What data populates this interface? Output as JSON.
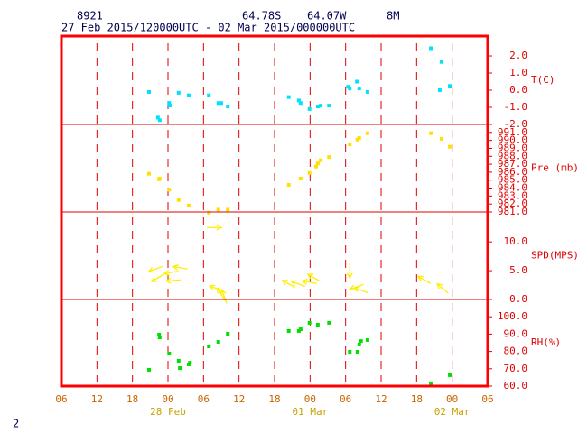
{
  "header": {
    "station": "8921",
    "lat": "64.78S",
    "lon": "64.07W",
    "height": "8M",
    "period": "27 Feb 2015/120000UTC - 02 Mar 2015/000000UTC",
    "page": "2"
  },
  "x_axis": {
    "xlim": [
      0,
      72
    ],
    "xticks": [
      {
        "value": 0,
        "label": "06"
      },
      {
        "value": 6,
        "label": "12"
      },
      {
        "value": 12,
        "label": "18"
      },
      {
        "value": 18,
        "label": "00"
      },
      {
        "value": 24,
        "label": "06"
      },
      {
        "value": 30,
        "label": "12"
      },
      {
        "value": 36,
        "label": "18"
      },
      {
        "value": 42,
        "label": "00"
      },
      {
        "value": 48,
        "label": "06"
      },
      {
        "value": 54,
        "label": "12"
      },
      {
        "value": 60,
        "label": "18"
      },
      {
        "value": 66,
        "label": "00"
      },
      {
        "value": 72,
        "label": "06"
      }
    ],
    "day_labels": [
      {
        "value": 18,
        "label": "28 Feb"
      },
      {
        "value": 42,
        "label": "01 Mar"
      },
      {
        "value": 66,
        "label": "02 Mar"
      }
    ]
  },
  "chart_data": [
    {
      "type": "scatter",
      "title": "T(C)",
      "color": "#00e0ff",
      "ylim": [
        -2,
        3.16
      ],
      "yticks": [
        {
          "value": -2,
          "label": "-2.0"
        },
        {
          "value": -1,
          "label": "-1.0"
        },
        {
          "value": 0,
          "label": "0.0"
        },
        {
          "value": 1,
          "label": "1.0"
        },
        {
          "value": 2,
          "label": "2.0"
        }
      ],
      "x": [
        14.8,
        16.3,
        16.6,
        18.2,
        18.3,
        19.8,
        21.5,
        24.9,
        26.5,
        27.0,
        28.1,
        38.4,
        40.1,
        40.4,
        41.9,
        43.3,
        43.8,
        45.2,
        48.4,
        48.7,
        49.9,
        50.3,
        51.7,
        62.4,
        64.2,
        63.9,
        65.6
      ],
      "values": [
        -0.1,
        -1.6,
        -1.75,
        -0.75,
        -0.9,
        -0.15,
        -0.3,
        -0.3,
        -0.75,
        -0.75,
        -0.95,
        -0.4,
        -0.6,
        -0.75,
        -1.1,
        -0.95,
        -0.9,
        -0.9,
        0.2,
        0.1,
        0.5,
        0.1,
        -0.1,
        2.45,
        1.65,
        0.0,
        0.25
      ]
    },
    {
      "type": "scatter",
      "title": "Pre (mb)",
      "color": "#ffe000",
      "ylim": [
        981,
        992
      ],
      "yticks": [
        {
          "value": 981,
          "label": "981.0"
        },
        {
          "value": 982,
          "label": "982.0"
        },
        {
          "value": 983,
          "label": "983.0"
        },
        {
          "value": 984,
          "label": "984.0"
        },
        {
          "value": 985,
          "label": "985.0"
        },
        {
          "value": 986,
          "label": "986.0"
        },
        {
          "value": 987,
          "label": "987.0"
        },
        {
          "value": 988,
          "label": "988.0"
        },
        {
          "value": 989,
          "label": "989.0"
        },
        {
          "value": 990,
          "label": "990.0"
        },
        {
          "value": 991,
          "label": "991.0"
        }
      ],
      "x": [
        14.8,
        16.5,
        16.6,
        18.2,
        19.8,
        21.5,
        24.9,
        26.5,
        28.1,
        38.4,
        40.4,
        41.9,
        43.0,
        43.3,
        43.8,
        45.2,
        48.7,
        50.0,
        50.3,
        51.7,
        62.4,
        64.2,
        65.6
      ],
      "values": [
        985.8,
        985.1,
        985.2,
        983.8,
        982.5,
        981.8,
        980.9,
        981.3,
        981.3,
        984.4,
        985.2,
        985.9,
        986.7,
        987.1,
        987.5,
        987.9,
        989.5,
        990.1,
        990.3,
        990.9,
        990.9,
        990.2,
        989.2
      ]
    },
    {
      "type": "quiver",
      "title": "SPD(MPS)",
      "color": "#ffee00",
      "ylim": [
        0,
        15.2
      ],
      "yticks": [
        {
          "value": 0,
          "label": "0.0"
        },
        {
          "value": 5,
          "label": "5.0"
        },
        {
          "value": 10,
          "label": "10.0"
        }
      ],
      "x": [
        15.9,
        16.3,
        18.6,
        20.1,
        18.9,
        25.8,
        26.2,
        27.0,
        27.5,
        38.4,
        40.0,
        41.9,
        42.7,
        48.7,
        49.9,
        50.6,
        61.3,
        64.4
      ],
      "values": [
        5.3,
        3.75,
        4.7,
        5.5,
        3.3,
        12.5,
        1.9,
        0.9,
        0.5,
        2.7,
        2.7,
        3.0,
        3.75,
        5.0,
        2.2,
        1.6,
        3.4,
        1.9
      ],
      "angles": [
        200,
        210,
        190,
        170,
        185,
        0,
        160,
        120,
        110,
        150,
        160,
        170,
        150,
        270,
        200,
        160,
        150,
        140
      ]
    },
    {
      "type": "scatter",
      "title": "RH(%)",
      "color": "#00e000",
      "ylim": [
        60,
        110
      ],
      "yticks": [
        {
          "value": 60,
          "label": "60.0"
        },
        {
          "value": 70,
          "label": "70.0"
        },
        {
          "value": 80,
          "label": "80.0"
        },
        {
          "value": 90,
          "label": "90.0"
        },
        {
          "value": 100,
          "label": "100.0"
        }
      ],
      "x": [
        14.8,
        16.5,
        16.6,
        18.2,
        19.8,
        20.0,
        21.5,
        21.7,
        24.9,
        26.5,
        28.1,
        38.4,
        40.1,
        40.4,
        41.9,
        43.3,
        45.2,
        48.7,
        50.0,
        50.3,
        50.6,
        51.7,
        62.4,
        65.6
      ],
      "values": [
        69.4,
        89.7,
        88.1,
        78.8,
        74.6,
        70.4,
        72.5,
        73.5,
        82.9,
        85.5,
        90.2,
        91.8,
        91.8,
        92.8,
        96.5,
        95.4,
        96.5,
        79.8,
        79.8,
        84.0,
        86.0,
        86.6,
        61.6,
        66.3
      ]
    }
  ]
}
